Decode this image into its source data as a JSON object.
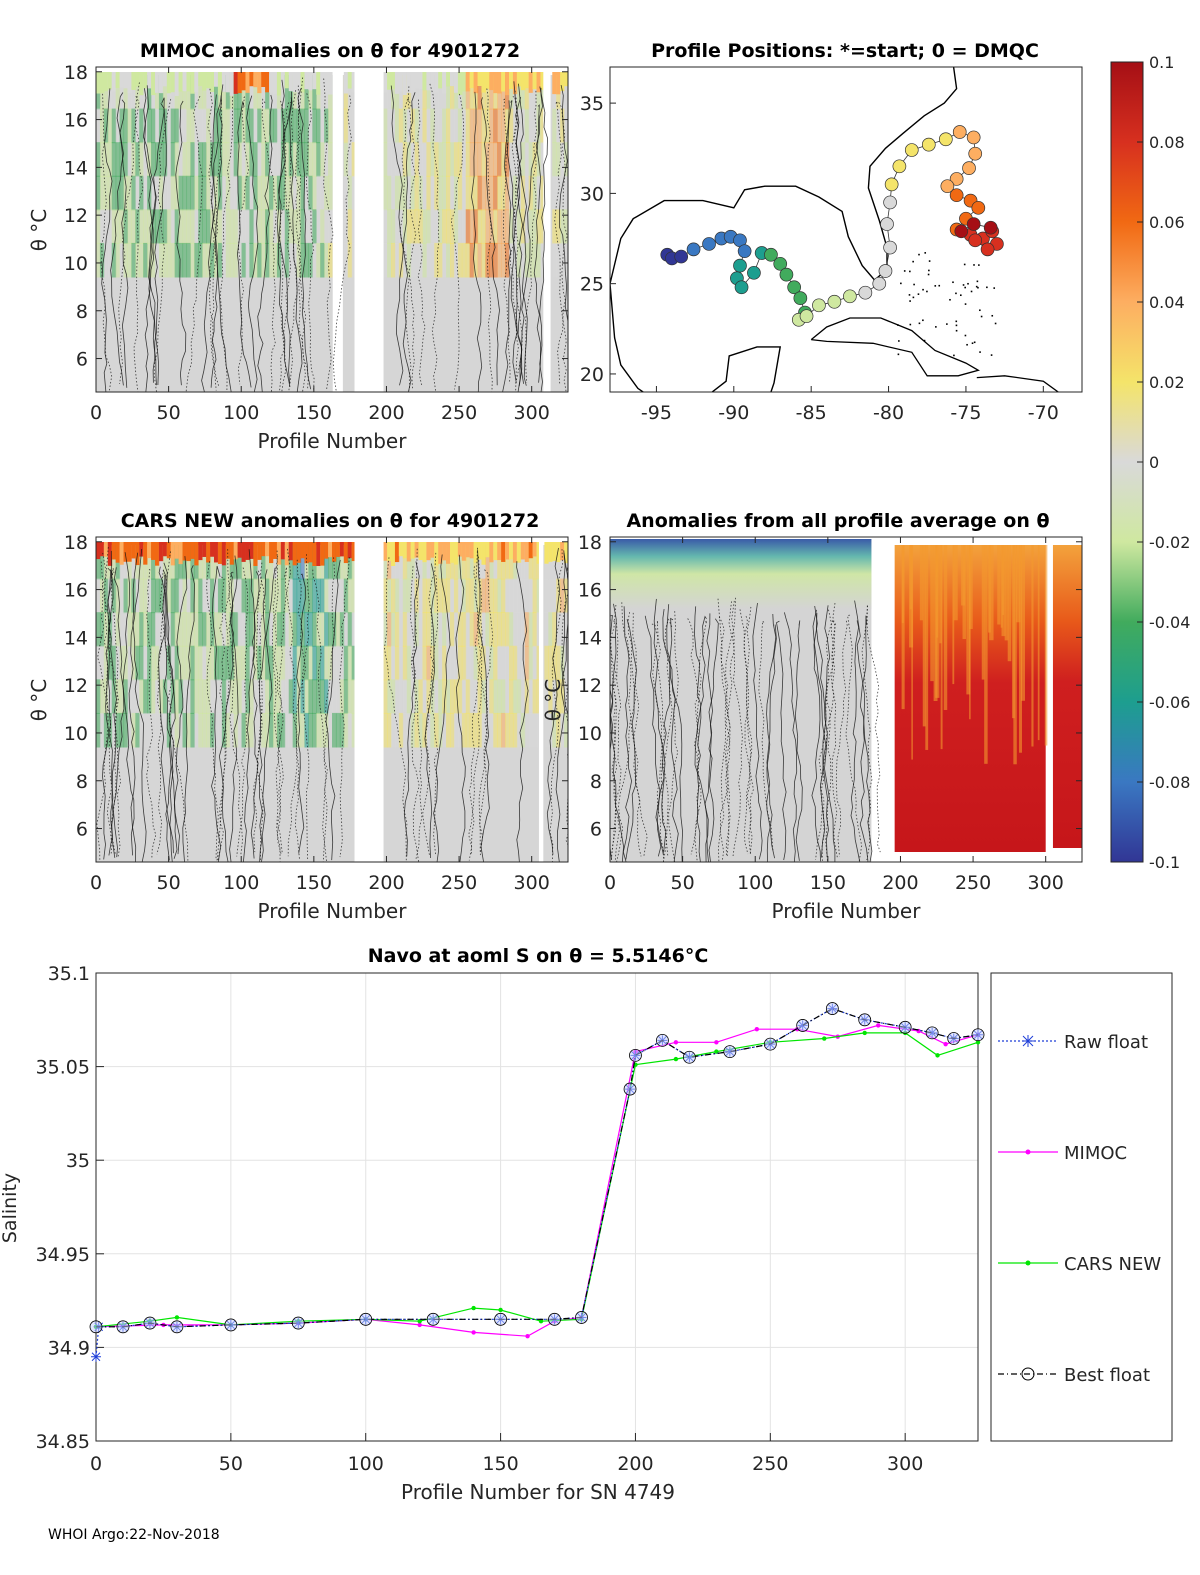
{
  "footer": "WHOI Argo:22-Nov-2018",
  "colorbar": {
    "ticks": [
      "0.1",
      "0.08",
      "0.06",
      "0.04",
      "0.02",
      "0",
      "-0.02",
      "-0.04",
      "-0.06",
      "-0.08",
      "-0.1"
    ],
    "range": [
      -0.1,
      0.1
    ]
  },
  "chart_data": [
    {
      "id": "mimoc",
      "type": "heatmap",
      "title": "MIMOC anomalies on θ  for 4901272",
      "xlabel": "Profile Number",
      "ylabel": "θ °C",
      "x_ticks": [
        "0",
        "50",
        "100",
        "150",
        "200",
        "250",
        "300"
      ],
      "y_ticks": [
        "18",
        "16",
        "14",
        "12",
        "10",
        "8",
        "6"
      ],
      "xlim": [
        0,
        325
      ],
      "ylim": [
        4.6,
        18.2
      ]
    },
    {
      "id": "positions",
      "type": "scatter",
      "title": "Profile Positions: *=start; 0 = DMQC",
      "x_ticks": [
        "-95",
        "-90",
        "-85",
        "-80",
        "-75",
        "-70"
      ],
      "y_ticks": [
        "35",
        "30",
        "25",
        "20"
      ],
      "xlim": [
        -98,
        -67.5
      ],
      "ylim": [
        19,
        37
      ],
      "track": [
        [
          -94.3,
          26.6
        ],
        [
          -94.0,
          26.4
        ],
        [
          -93.4,
          26.5
        ],
        [
          -92.6,
          26.9
        ],
        [
          -91.6,
          27.2
        ],
        [
          -90.8,
          27.5
        ],
        [
          -90.2,
          27.6
        ],
        [
          -89.6,
          27.4
        ],
        [
          -89.3,
          26.8
        ],
        [
          -89.6,
          26.0
        ],
        [
          -89.8,
          25.3
        ],
        [
          -89.5,
          24.8
        ],
        [
          -88.7,
          25.6
        ],
        [
          -88.2,
          26.7
        ],
        [
          -87.6,
          26.6
        ],
        [
          -87.0,
          26.1
        ],
        [
          -86.6,
          25.5
        ],
        [
          -86.1,
          24.8
        ],
        [
          -85.7,
          24.2
        ],
        [
          -85.4,
          23.4
        ],
        [
          -85.8,
          23.0
        ],
        [
          -85.3,
          23.2
        ],
        [
          -84.5,
          23.8
        ],
        [
          -83.5,
          24.0
        ],
        [
          -82.5,
          24.3
        ],
        [
          -81.5,
          24.5
        ],
        [
          -80.6,
          25.0
        ],
        [
          -80.2,
          25.7
        ],
        [
          -79.9,
          27.0
        ],
        [
          -80.1,
          28.3
        ],
        [
          -79.9,
          29.5
        ],
        [
          -79.8,
          30.5
        ],
        [
          -79.3,
          31.5
        ],
        [
          -78.5,
          32.4
        ],
        [
          -77.4,
          32.7
        ],
        [
          -76.3,
          33.0
        ],
        [
          -75.4,
          33.4
        ],
        [
          -74.5,
          33.1
        ],
        [
          -74.4,
          32.2
        ],
        [
          -74.8,
          31.4
        ],
        [
          -75.6,
          30.8
        ],
        [
          -76.2,
          30.4
        ],
        [
          -75.6,
          29.9
        ],
        [
          -74.7,
          29.6
        ],
        [
          -74.2,
          29.2
        ],
        [
          -75.0,
          28.6
        ],
        [
          -75.6,
          28.0
        ],
        [
          -74.7,
          27.7
        ],
        [
          -73.9,
          27.5
        ],
        [
          -73.3,
          27.9
        ],
        [
          -73.0,
          27.2
        ],
        [
          -73.6,
          26.9
        ],
        [
          -74.4,
          27.4
        ],
        [
          -75.3,
          27.9
        ],
        [
          -74.5,
          28.3
        ],
        [
          -73.4,
          28.1
        ]
      ]
    },
    {
      "id": "cars",
      "type": "heatmap",
      "title": "CARS NEW anomalies on θ for 4901272",
      "xlabel": "Profile Number",
      "ylabel": "θ °C",
      "x_ticks": [
        "0",
        "50",
        "100",
        "150",
        "200",
        "250",
        "300"
      ],
      "y_ticks": [
        "18",
        "16",
        "14",
        "12",
        "10",
        "8",
        "6"
      ],
      "xlim": [
        0,
        325
      ],
      "ylim": [
        4.6,
        18.2
      ]
    },
    {
      "id": "allavg",
      "type": "heatmap",
      "title": "Anomalies from all profile average on θ",
      "xlabel": "Profile Number",
      "ylabel": "θ °C",
      "x_ticks": [
        "0",
        "50",
        "100",
        "150",
        "200",
        "250",
        "300"
      ],
      "y_ticks": [
        "18",
        "16",
        "14",
        "12",
        "10",
        "8",
        "6"
      ],
      "xlim": [
        0,
        325
      ],
      "ylim": [
        4.6,
        18.2
      ]
    },
    {
      "id": "salinity",
      "type": "line",
      "title": "Navo at aoml S on θ = 5.5146°C",
      "xlabel": "Profile Number for SN 4749",
      "ylabel": "Salinity",
      "x_ticks": [
        "0",
        "50",
        "100",
        "150",
        "200",
        "250",
        "300"
      ],
      "y_ticks": [
        "35.1",
        "35.05",
        "35",
        "34.95",
        "34.9",
        "34.85"
      ],
      "xlim": [
        0,
        327
      ],
      "ylim": [
        34.85,
        35.1
      ],
      "legend": [
        "Raw float",
        "MIMOC",
        "CARS NEW",
        "Best float"
      ],
      "series": [
        {
          "name": "Raw float",
          "points": [
            [
              0,
              34.895
            ],
            [
              1,
              34.911
            ],
            [
              10,
              34.911
            ],
            [
              20,
              34.913
            ],
            [
              30,
              34.911
            ],
            [
              50,
              34.912
            ],
            [
              75,
              34.913
            ],
            [
              100,
              34.915
            ],
            [
              125,
              34.915
            ],
            [
              150,
              34.915
            ],
            [
              170,
              34.915
            ],
            [
              180,
              34.916
            ],
            [
              198,
              35.038
            ],
            [
              200,
              35.056
            ],
            [
              210,
              35.064
            ],
            [
              220,
              35.055
            ],
            [
              235,
              35.058
            ],
            [
              250,
              35.062
            ],
            [
              262,
              35.072
            ],
            [
              273,
              35.081
            ],
            [
              285,
              35.075
            ],
            [
              300,
              35.071
            ],
            [
              310,
              35.068
            ],
            [
              318,
              35.065
            ],
            [
              327,
              35.067
            ]
          ]
        },
        {
          "name": "MIMOC",
          "points": [
            [
              0,
              34.911
            ],
            [
              25,
              34.912
            ],
            [
              50,
              34.912
            ],
            [
              75,
              34.913
            ],
            [
              100,
              34.915
            ],
            [
              120,
              34.912
            ],
            [
              140,
              34.908
            ],
            [
              160,
              34.906
            ],
            [
              170,
              34.914
            ],
            [
              180,
              34.916
            ],
            [
              200,
              35.058
            ],
            [
              215,
              35.063
            ],
            [
              230,
              35.063
            ],
            [
              245,
              35.07
            ],
            [
              260,
              35.07
            ],
            [
              275,
              35.066
            ],
            [
              290,
              35.072
            ],
            [
              305,
              35.069
            ],
            [
              315,
              35.062
            ],
            [
              327,
              35.067
            ]
          ]
        },
        {
          "name": "CARS NEW",
          "points": [
            [
              0,
              34.911
            ],
            [
              20,
              34.914
            ],
            [
              30,
              34.916
            ],
            [
              50,
              34.912
            ],
            [
              75,
              34.914
            ],
            [
              100,
              34.915
            ],
            [
              120,
              34.914
            ],
            [
              140,
              34.921
            ],
            [
              150,
              34.92
            ],
            [
              165,
              34.914
            ],
            [
              180,
              34.915
            ],
            [
              200,
              35.051
            ],
            [
              215,
              35.054
            ],
            [
              230,
              35.058
            ],
            [
              250,
              35.063
            ],
            [
              270,
              35.065
            ],
            [
              285,
              35.068
            ],
            [
              300,
              35.068
            ],
            [
              312,
              35.056
            ],
            [
              327,
              35.063
            ]
          ]
        },
        {
          "name": "Best float",
          "points": [
            [
              0,
              34.911
            ],
            [
              10,
              34.911
            ],
            [
              20,
              34.913
            ],
            [
              30,
              34.911
            ],
            [
              50,
              34.912
            ],
            [
              75,
              34.913
            ],
            [
              100,
              34.915
            ],
            [
              125,
              34.915
            ],
            [
              150,
              34.915
            ],
            [
              170,
              34.915
            ],
            [
              180,
              34.916
            ],
            [
              198,
              35.038
            ],
            [
              200,
              35.056
            ],
            [
              210,
              35.064
            ],
            [
              220,
              35.055
            ],
            [
              235,
              35.058
            ],
            [
              250,
              35.062
            ],
            [
              262,
              35.072
            ],
            [
              273,
              35.081
            ],
            [
              285,
              35.075
            ],
            [
              300,
              35.071
            ],
            [
              310,
              35.068
            ],
            [
              318,
              35.065
            ],
            [
              327,
              35.067
            ]
          ]
        }
      ]
    }
  ]
}
